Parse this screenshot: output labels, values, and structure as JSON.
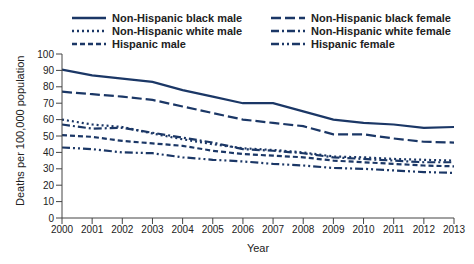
{
  "chart_data": {
    "type": "line",
    "x_label": "Year",
    "y_label": "Deaths per 100,000 population",
    "categories": [
      "2000",
      "2001",
      "2002",
      "2003",
      "2004",
      "2005",
      "2006",
      "2007",
      "2008",
      "2009",
      "2010",
      "2011",
      "2012",
      "2013"
    ],
    "series": [
      {
        "name": "Non-Hispanic black male",
        "color": "#1b3766",
        "line_style": "solid",
        "values": [
          90.5,
          87,
          85,
          83,
          78,
          74,
          70,
          70,
          65,
          60,
          58,
          57,
          55,
          55.5
        ]
      },
      {
        "name": "Non-Hispanic black female",
        "color": "#1b3766",
        "line_style": "dashed",
        "values": [
          77,
          75.5,
          74,
          72,
          68,
          64,
          60,
          58,
          56,
          51,
          51,
          48.5,
          46.5,
          46
        ]
      },
      {
        "name": "Non-Hispanic white male",
        "color": "#1b3766",
        "line_style": "dotted",
        "values": [
          60,
          57,
          55.5,
          51.5,
          48,
          45,
          42.5,
          41.5,
          40,
          37.5,
          37,
          36,
          35.5,
          35
        ]
      },
      {
        "name": "Non-Hispanic white female",
        "color": "#1b3766",
        "line_style": "dashdot",
        "values": [
          57,
          54.5,
          55,
          52,
          49,
          46,
          42,
          41,
          39.5,
          37,
          36,
          35,
          34,
          34
        ]
      },
      {
        "name": "Hispanic male",
        "color": "#1b3766",
        "line_style": "shortdash",
        "values": [
          50.5,
          49.5,
          47,
          45.5,
          44,
          41,
          39,
          38,
          37,
          35,
          34,
          33,
          32,
          31.5
        ]
      },
      {
        "name": "Hispanic female",
        "color": "#1b3766",
        "line_style": "dashdotdot",
        "values": [
          43,
          42,
          40,
          39.5,
          37,
          35.5,
          34.5,
          33,
          32,
          30.5,
          30,
          29,
          28,
          27.5
        ]
      }
    ],
    "ylim": [
      0,
      100
    ],
    "yticks": [
      0,
      10,
      20,
      30,
      40,
      50,
      60,
      70,
      80,
      90,
      100
    ],
    "grid": false,
    "legend": "top"
  }
}
